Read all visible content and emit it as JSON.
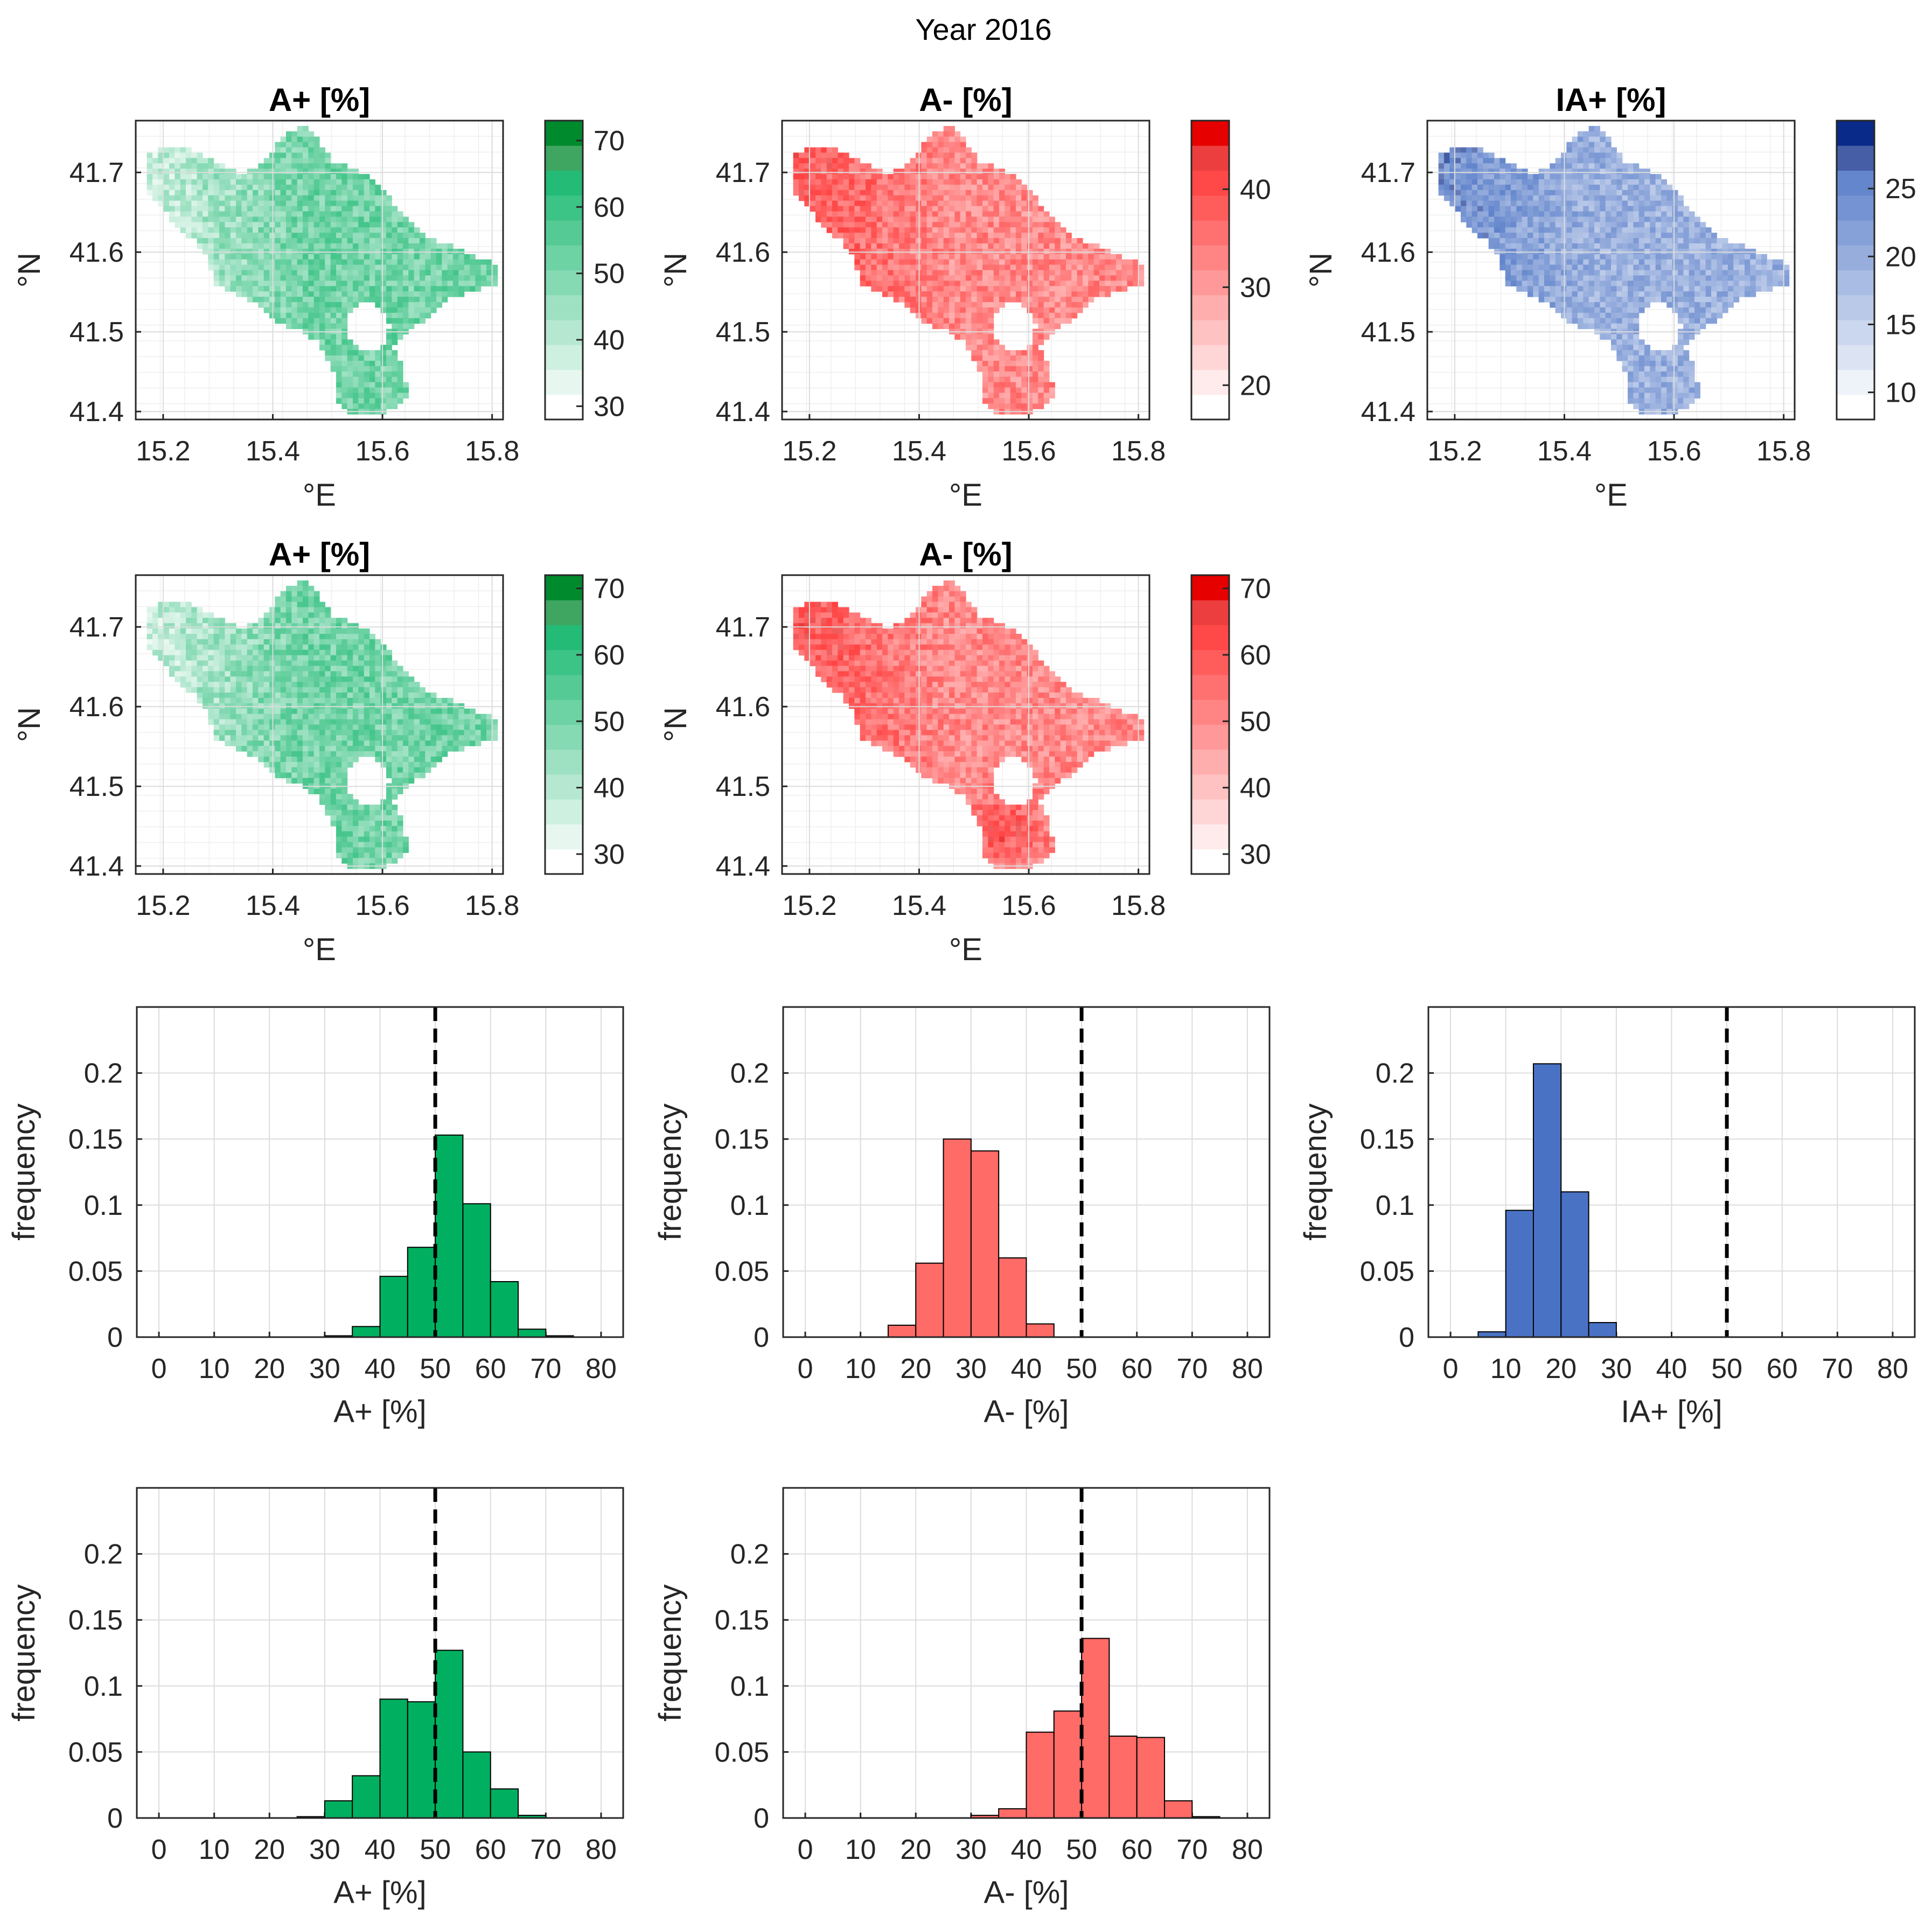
{
  "figure_title": "Year 2016",
  "colors": {
    "green": "#00b060",
    "green_dark": "#008a2e",
    "red": "#ff2a2a",
    "red_dark": "#e60000",
    "blue": "#4a72c4",
    "blue_dark": "#0a2a8a"
  },
  "chart_data": [
    {
      "id": "map-1",
      "type": "heatmap",
      "title": "A+ [%]",
      "xlabel": "°E",
      "ylabel": "°N",
      "xlim": [
        15.15,
        15.82
      ],
      "ylim": [
        41.39,
        41.765
      ],
      "xticks": [
        15.2,
        15.4,
        15.6,
        15.8
      ],
      "yticks": [
        41.4,
        41.5,
        41.6,
        41.7
      ],
      "xtick_labels": [
        "15.2",
        "15.4",
        "15.6",
        "15.8"
      ],
      "ytick_labels": [
        "41.4",
        "41.5",
        "41.6",
        "41.7"
      ],
      "colormap": "green",
      "color_range": [
        28,
        73
      ],
      "colorbar_ticks": [
        30,
        40,
        50,
        60,
        70
      ],
      "colorbar_tick_labels": [
        "30",
        "40",
        "50",
        "60",
        "70"
      ]
    },
    {
      "id": "map-2",
      "type": "heatmap",
      "title": "A- [%]",
      "xlabel": "°E",
      "ylabel": "°N",
      "xlim": [
        15.15,
        15.82
      ],
      "ylim": [
        41.39,
        41.765
      ],
      "xticks": [
        15.2,
        15.4,
        15.6,
        15.8
      ],
      "yticks": [
        41.4,
        41.5,
        41.6,
        41.7
      ],
      "xtick_labels": [
        "15.2",
        "15.4",
        "15.6",
        "15.8"
      ],
      "ytick_labels": [
        "41.4",
        "41.5",
        "41.6",
        "41.7"
      ],
      "colormap": "red",
      "color_range": [
        16.5,
        47
      ],
      "colorbar_ticks": [
        20,
        30,
        40
      ],
      "colorbar_tick_labels": [
        "20",
        "30",
        "40"
      ]
    },
    {
      "id": "map-3",
      "type": "heatmap",
      "title": "IA+ [%]",
      "xlabel": "°E",
      "ylabel": "°N",
      "xlim": [
        15.15,
        15.82
      ],
      "ylim": [
        41.39,
        41.765
      ],
      "xticks": [
        15.2,
        15.4,
        15.6,
        15.8
      ],
      "yticks": [
        41.4,
        41.5,
        41.6,
        41.7
      ],
      "xtick_labels": [
        "15.2",
        "15.4",
        "15.6",
        "15.8"
      ],
      "ytick_labels": [
        "41.4",
        "41.5",
        "41.6",
        "41.7"
      ],
      "colormap": "blue",
      "color_range": [
        8,
        30
      ],
      "colorbar_ticks": [
        10,
        15,
        20,
        25
      ],
      "colorbar_tick_labels": [
        "10",
        "15",
        "20",
        "25"
      ]
    },
    {
      "id": "map-4",
      "type": "heatmap",
      "title": "A+ [%]",
      "xlabel": "°E",
      "ylabel": "°N",
      "xlim": [
        15.15,
        15.82
      ],
      "ylim": [
        41.39,
        41.765
      ],
      "xticks": [
        15.2,
        15.4,
        15.6,
        15.8
      ],
      "yticks": [
        41.4,
        41.5,
        41.6,
        41.7
      ],
      "xtick_labels": [
        "15.2",
        "15.4",
        "15.6",
        "15.8"
      ],
      "ytick_labels": [
        "41.4",
        "41.5",
        "41.6",
        "41.7"
      ],
      "colormap": "green",
      "color_range": [
        27,
        72
      ],
      "colorbar_ticks": [
        30,
        40,
        50,
        60,
        70
      ],
      "colorbar_tick_labels": [
        "30",
        "40",
        "50",
        "60",
        "70"
      ]
    },
    {
      "id": "map-5",
      "type": "heatmap",
      "title": "A- [%]",
      "xlabel": "°E",
      "ylabel": "°N",
      "xlim": [
        15.15,
        15.82
      ],
      "ylim": [
        41.39,
        41.765
      ],
      "xticks": [
        15.2,
        15.4,
        15.6,
        15.8
      ],
      "yticks": [
        41.4,
        41.5,
        41.6,
        41.7
      ],
      "xtick_labels": [
        "15.2",
        "15.4",
        "15.6",
        "15.8"
      ],
      "ytick_labels": [
        "41.4",
        "41.5",
        "41.6",
        "41.7"
      ],
      "colormap": "red",
      "color_range": [
        27,
        72
      ],
      "colorbar_ticks": [
        30,
        40,
        50,
        60,
        70
      ],
      "colorbar_tick_labels": [
        "30",
        "40",
        "50",
        "60",
        "70"
      ]
    },
    {
      "id": "hist-1",
      "type": "bar",
      "xlabel": "A+ [%]",
      "ylabel": "frequency",
      "xlim": [
        -4,
        84
      ],
      "ylim": [
        0,
        0.25
      ],
      "xticks": [
        0,
        10,
        20,
        30,
        40,
        50,
        60,
        70,
        80
      ],
      "yticks": [
        0,
        0.05,
        0.1,
        0.15,
        0.2
      ],
      "xtick_labels": [
        "0",
        "10",
        "20",
        "30",
        "40",
        "50",
        "60",
        "70",
        "80"
      ],
      "ytick_labels": [
        "0",
        "0.05",
        "0.1",
        "0.15",
        "0.2"
      ],
      "bin_edges": [
        30,
        35,
        40,
        45,
        50,
        55,
        60,
        65,
        70,
        75
      ],
      "values": [
        0.001,
        0.008,
        0.046,
        0.068,
        0.153,
        0.101,
        0.042,
        0.006,
        0.001
      ],
      "reference_line": 50,
      "colormap": "green"
    },
    {
      "id": "hist-2",
      "type": "bar",
      "xlabel": "A- [%]",
      "ylabel": "frequency",
      "xlim": [
        -4,
        84
      ],
      "ylim": [
        0,
        0.25
      ],
      "xticks": [
        0,
        10,
        20,
        30,
        40,
        50,
        60,
        70,
        80
      ],
      "yticks": [
        0,
        0.05,
        0.1,
        0.15,
        0.2
      ],
      "xtick_labels": [
        "0",
        "10",
        "20",
        "30",
        "40",
        "50",
        "60",
        "70",
        "80"
      ],
      "ytick_labels": [
        "0",
        "0.05",
        "0.1",
        "0.15",
        "0.2"
      ],
      "bin_edges": [
        15,
        20,
        25,
        30,
        35,
        40,
        45
      ],
      "values": [
        0.009,
        0.056,
        0.15,
        0.141,
        0.06,
        0.01
      ],
      "reference_line": 50,
      "colormap": "red"
    },
    {
      "id": "hist-3",
      "type": "bar",
      "xlabel": "IA+ [%]",
      "ylabel": "frequency",
      "xlim": [
        -4,
        84
      ],
      "ylim": [
        0,
        0.25
      ],
      "xticks": [
        0,
        10,
        20,
        30,
        40,
        50,
        60,
        70,
        80
      ],
      "yticks": [
        0,
        0.05,
        0.1,
        0.15,
        0.2
      ],
      "xtick_labels": [
        "0",
        "10",
        "20",
        "30",
        "40",
        "50",
        "60",
        "70",
        "80"
      ],
      "ytick_labels": [
        "0",
        "0.05",
        "0.1",
        "0.15",
        "0.2"
      ],
      "bin_edges": [
        5,
        10,
        15,
        20,
        25,
        30
      ],
      "values": [
        0.004,
        0.096,
        0.207,
        0.11,
        0.011
      ],
      "reference_line": 50,
      "colormap": "blue"
    },
    {
      "id": "hist-4",
      "type": "bar",
      "xlabel": "A+ [%]",
      "ylabel": "frequency",
      "xlim": [
        -4,
        84
      ],
      "ylim": [
        0,
        0.25
      ],
      "xticks": [
        0,
        10,
        20,
        30,
        40,
        50,
        60,
        70,
        80
      ],
      "yticks": [
        0,
        0.05,
        0.1,
        0.15,
        0.2
      ],
      "xtick_labels": [
        "0",
        "10",
        "20",
        "30",
        "40",
        "50",
        "60",
        "70",
        "80"
      ],
      "ytick_labels": [
        "0",
        "0.05",
        "0.1",
        "0.15",
        "0.2"
      ],
      "bin_edges": [
        25,
        30,
        35,
        40,
        45,
        50,
        55,
        60,
        65,
        70
      ],
      "values": [
        0.001,
        0.013,
        0.032,
        0.09,
        0.088,
        0.127,
        0.05,
        0.022,
        0.002
      ],
      "reference_line": 50,
      "colormap": "green"
    },
    {
      "id": "hist-5",
      "type": "bar",
      "xlabel": "A- [%]",
      "ylabel": "frequency",
      "xlim": [
        -4,
        84
      ],
      "ylim": [
        0,
        0.25
      ],
      "xticks": [
        0,
        10,
        20,
        30,
        40,
        50,
        60,
        70,
        80
      ],
      "yticks": [
        0,
        0.05,
        0.1,
        0.15,
        0.2
      ],
      "xtick_labels": [
        "0",
        "10",
        "20",
        "30",
        "40",
        "50",
        "60",
        "70",
        "80"
      ],
      "ytick_labels": [
        "0",
        "0.05",
        "0.1",
        "0.15",
        "0.2"
      ],
      "bin_edges": [
        30,
        35,
        40,
        45,
        50,
        55,
        60,
        65,
        70,
        75
      ],
      "values": [
        0.002,
        0.007,
        0.065,
        0.081,
        0.136,
        0.062,
        0.061,
        0.013,
        0.001
      ],
      "reference_line": 50,
      "colormap": "red"
    }
  ]
}
